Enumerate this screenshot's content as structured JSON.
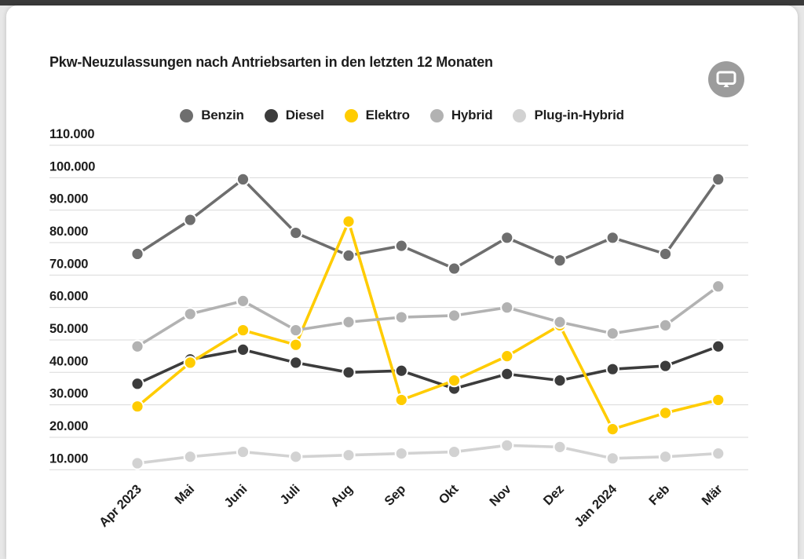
{
  "header": {
    "screen_button_icon": "monitor"
  },
  "chart_data": {
    "type": "line",
    "title": "Pkw-Neuzulassungen nach Antriebsarten in den letzten 12 Monaten",
    "categories": [
      "Apr 2023",
      "Mai",
      "Juni",
      "Juli",
      "Aug",
      "Sep",
      "Okt",
      "Nov",
      "Dez",
      "Jan 2024",
      "Feb",
      "Mär"
    ],
    "series": [
      {
        "name": "Benzin",
        "color": "#6e6e6e",
        "values": [
          76500,
          87000,
          99500,
          83000,
          76000,
          79000,
          72000,
          81500,
          74500,
          81500,
          76500,
          99500
        ]
      },
      {
        "name": "Diesel",
        "color": "#3c3c3c",
        "values": [
          36500,
          44000,
          47000,
          43000,
          40000,
          40500,
          35000,
          39500,
          37500,
          41000,
          42000,
          48000
        ]
      },
      {
        "name": "Elektro",
        "color": "#ffcc00",
        "values": [
          29500,
          43000,
          53000,
          48500,
          86500,
          31500,
          37500,
          45000,
          54500,
          22500,
          27500,
          31500
        ]
      },
      {
        "name": "Hybrid",
        "color": "#b2b2b2",
        "values": [
          48000,
          58000,
          62000,
          53000,
          55500,
          57000,
          57500,
          60000,
          55500,
          52000,
          54500,
          66500
        ]
      },
      {
        "name": "Plug-in-Hybrid",
        "color": "#d2d2d2",
        "values": [
          12000,
          14000,
          15500,
          14000,
          14500,
          15000,
          15500,
          17500,
          17000,
          13500,
          14000,
          15000
        ]
      }
    ],
    "y_tick_values": [
      110000,
      100000,
      90000,
      80000,
      70000,
      60000,
      50000,
      40000,
      30000,
      20000,
      10000
    ],
    "y_tick_labels": [
      "110.000",
      "100.000",
      "90.000",
      "80.000",
      "70.000",
      "60.000",
      "50.000",
      "40.000",
      "30.000",
      "20.000",
      "10.000"
    ],
    "ylim": [
      10000,
      110000
    ],
    "grid": true,
    "legend_position": "top-center",
    "x_label_rotation": -45
  }
}
